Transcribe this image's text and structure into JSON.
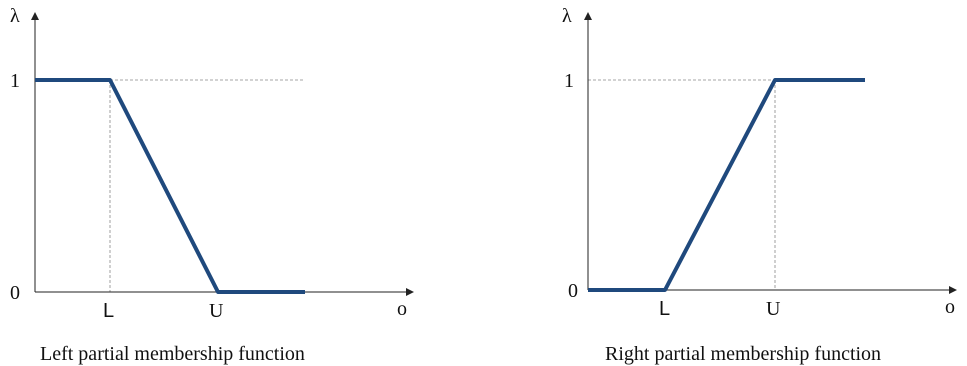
{
  "colors": {
    "curve": "#1f497d",
    "axis": "#222222",
    "guide": "#888888"
  },
  "left_panel": {
    "y_axis_label": "λ",
    "x_axis_label": "o",
    "tick_one": "1",
    "tick_zero": "0",
    "tick_L": "L",
    "tick_U": "U",
    "caption": "Left partial membership function"
  },
  "right_panel": {
    "y_axis_label": "λ",
    "x_axis_label": "o",
    "tick_one": "1",
    "tick_zero": "0",
    "tick_L": "L",
    "tick_U": "U",
    "caption": "Right partial membership function"
  }
}
